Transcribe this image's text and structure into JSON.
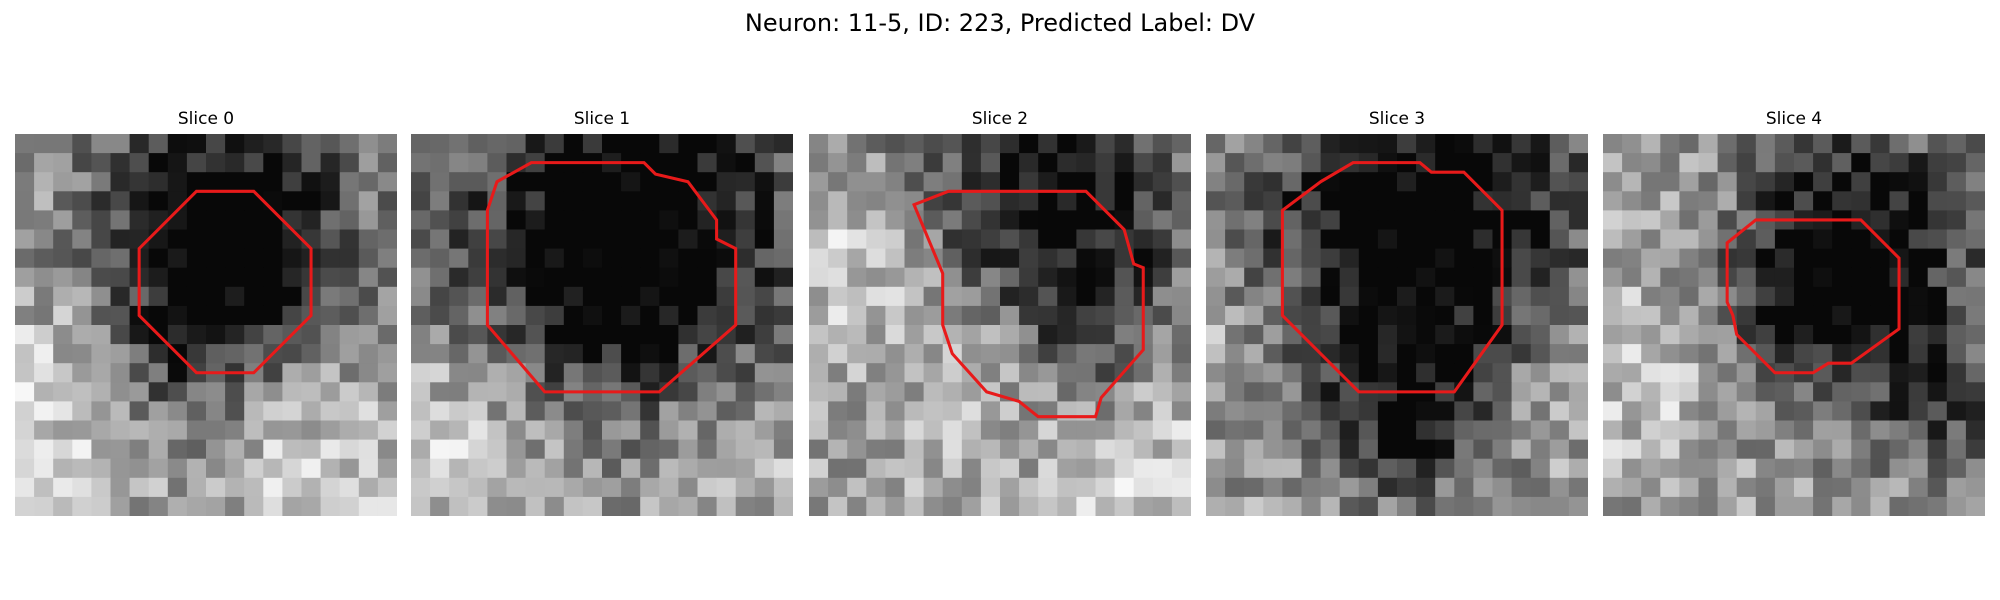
{
  "title": "Neuron: 11-5, ID: 223, Predicted Label: DV",
  "colors": {
    "contour": "#e81a1a",
    "background": "#ffffff"
  },
  "panels": [
    {
      "title": "Slice 0",
      "contour": [
        [
          9.5,
          3
        ],
        [
          12.5,
          3
        ],
        [
          15.5,
          6
        ],
        [
          15.5,
          9.5
        ],
        [
          12.5,
          12.5
        ],
        [
          9.5,
          12.5
        ],
        [
          6.5,
          9.5
        ],
        [
          6.5,
          6
        ]
      ]
    },
    {
      "title": "Slice 1",
      "contour": [
        [
          4.5,
          2.5
        ],
        [
          6.3,
          1.5
        ],
        [
          12.2,
          1.5
        ],
        [
          12.8,
          2.1
        ],
        [
          14.5,
          2.5
        ],
        [
          16,
          4.5
        ],
        [
          16,
          5.5
        ],
        [
          17,
          6
        ],
        [
          17,
          10
        ],
        [
          13,
          13.5
        ],
        [
          7,
          13.5
        ],
        [
          4,
          10
        ],
        [
          4,
          4
        ]
      ]
    },
    {
      "title": "Slice 2",
      "contour": [
        [
          5.5,
          3.7
        ],
        [
          7.3,
          3
        ],
        [
          14.5,
          3
        ],
        [
          16.5,
          5
        ],
        [
          17,
          6.8
        ],
        [
          17.5,
          7
        ],
        [
          17.5,
          11.3
        ],
        [
          15.3,
          13.8
        ],
        [
          15,
          14.8
        ],
        [
          12,
          14.8
        ],
        [
          11,
          14
        ],
        [
          9.3,
          13.5
        ],
        [
          7.5,
          11.5
        ],
        [
          7,
          10
        ],
        [
          7,
          7.3
        ]
      ]
    },
    {
      "title": "Slice 3",
      "contour": [
        [
          6,
          2.5
        ],
        [
          7.7,
          1.5
        ],
        [
          11.2,
          1.5
        ],
        [
          11.8,
          2
        ],
        [
          13.5,
          2
        ],
        [
          15,
          3.5
        ],
        [
          15.5,
          4
        ],
        [
          15.5,
          10
        ],
        [
          13,
          13.5
        ],
        [
          8,
          13.5
        ],
        [
          4,
          9.5
        ],
        [
          4,
          4
        ]
      ]
    },
    {
      "title": "Slice 4",
      "contour": [
        [
          6.5,
          5.7
        ],
        [
          8,
          4.5
        ],
        [
          13.5,
          4.5
        ],
        [
          15,
          6
        ],
        [
          15.5,
          6.5
        ],
        [
          15.5,
          10.2
        ],
        [
          13,
          12
        ],
        [
          11.8,
          12
        ],
        [
          11,
          12.5
        ],
        [
          9,
          12.5
        ],
        [
          7,
          10.5
        ],
        [
          6.8,
          9.5
        ],
        [
          6.5,
          8.8
        ]
      ]
    }
  ]
}
